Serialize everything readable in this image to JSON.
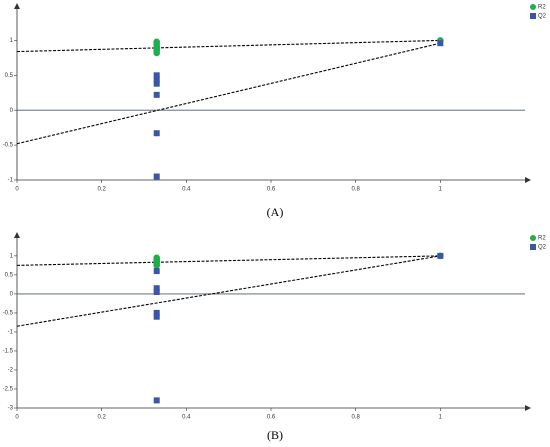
{
  "chart_data": [
    {
      "type": "scatter",
      "label": "(A)",
      "xlim": [
        0,
        1.2
      ],
      "xticks": [
        0,
        0.2,
        0.4,
        0.6,
        0.8,
        1
      ],
      "ylim": [
        -1,
        1.45
      ],
      "yticks": [
        -1,
        -0.5,
        0,
        0.5,
        1
      ],
      "hline": 0,
      "legend": "top-right",
      "series": [
        {
          "name": "R2",
          "color": "#1fae4b",
          "marker": "circle",
          "x": [
            0.33,
            0.33,
            0.33,
            0.33,
            0.33,
            0.33,
            1
          ],
          "values": [
            0.98,
            0.95,
            0.92,
            0.89,
            0.86,
            0.82,
            1
          ]
        },
        {
          "name": "Q2",
          "color": "#3a56a8",
          "marker": "square",
          "x": [
            0.33,
            0.33,
            0.33,
            0.33,
            0.33,
            0.33,
            1
          ],
          "values": [
            0.5,
            0.44,
            0.38,
            0.22,
            -0.33,
            -0.95,
            0.96
          ]
        }
      ],
      "lines": [
        {
          "x": [
            0,
            1
          ],
          "values": [
            0.84,
            1
          ]
        },
        {
          "x": [
            0,
            1
          ],
          "values": [
            -0.48,
            0.96
          ]
        }
      ]
    },
    {
      "type": "scatter",
      "label": "(B)",
      "xlim": [
        0,
        1.2
      ],
      "xticks": [
        0,
        0.2,
        0.4,
        0.6,
        0.8,
        1
      ],
      "ylim": [
        -3,
        1.47
      ],
      "yticks": [
        -3,
        -2.5,
        -2,
        -1.5,
        -1,
        -0.5,
        0,
        0.5,
        1
      ],
      "hline": 0,
      "legend": "top-right",
      "series": [
        {
          "name": "R2",
          "color": "#1fae4b",
          "marker": "circle",
          "x": [
            0.33,
            0.33,
            0.33,
            0.33,
            0.33,
            1
          ],
          "values": [
            0.95,
            0.9,
            0.85,
            0.8,
            0.75,
            1
          ]
        },
        {
          "name": "Q2",
          "color": "#3a56a8",
          "marker": "square",
          "x": [
            0.33,
            0.33,
            0.33,
            0.33,
            0.33,
            0.33,
            1
          ],
          "values": [
            0.6,
            0.15,
            0.05,
            -0.5,
            -0.6,
            -2.8,
            1
          ]
        }
      ],
      "lines": [
        {
          "x": [
            0,
            1
          ],
          "values": [
            0.75,
            1
          ]
        },
        {
          "x": [
            0,
            1
          ],
          "values": [
            -0.85,
            1
          ]
        }
      ]
    }
  ]
}
